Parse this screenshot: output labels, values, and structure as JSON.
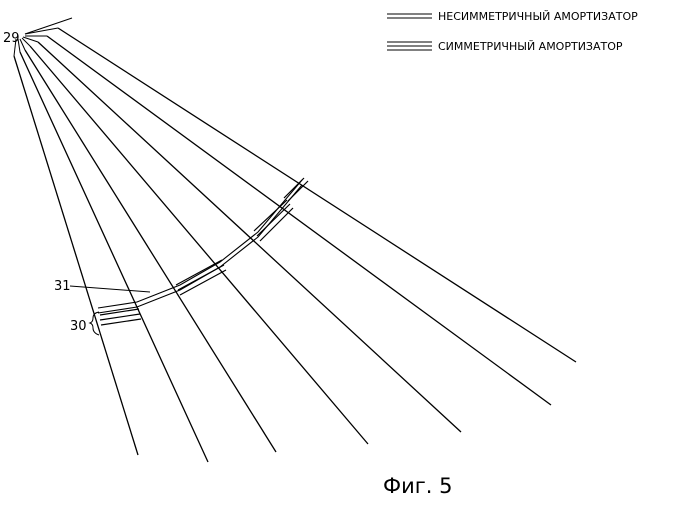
{
  "legend": {
    "items": [
      {
        "style": "double-line",
        "label": "НЕСИММЕТРИЧНЫЙ АМОРТИЗАТОР"
      },
      {
        "style": "triple-line",
        "label": "СИММЕТРИЧНЫЙ АМОРТИЗАТОР"
      }
    ]
  },
  "references": {
    "lines": "29",
    "curve": "31",
    "damper": "30"
  },
  "caption": "Фиг. 5",
  "colors": {
    "line": "#000000",
    "background": "#ffffff"
  }
}
